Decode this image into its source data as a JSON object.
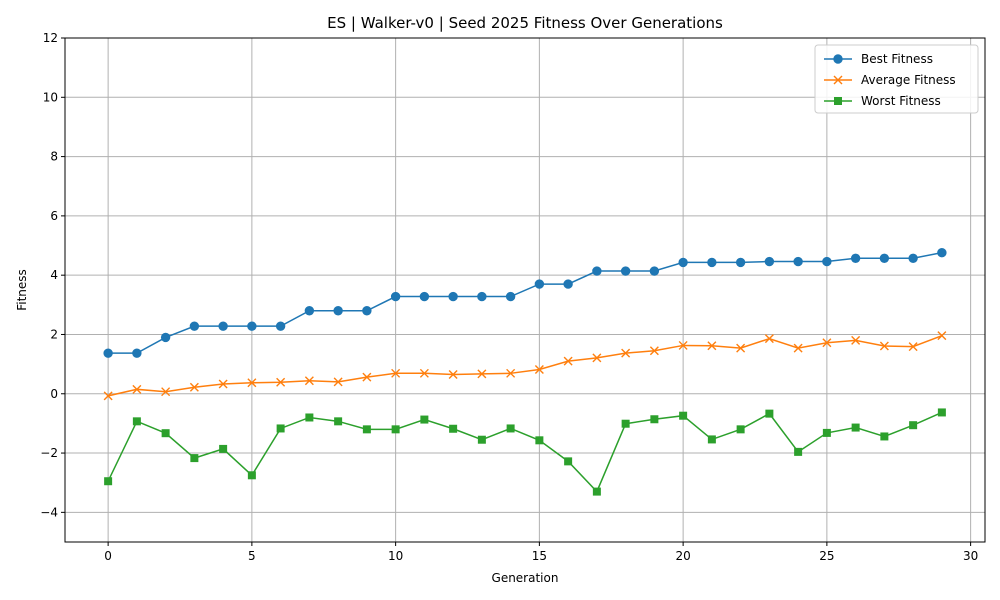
{
  "chart_data": {
    "type": "line",
    "title": "ES | Walker-v0 | Seed 2025 Fitness Over Generations",
    "xlabel": "Generation",
    "ylabel": "Fitness",
    "xlim": [
      -1.5,
      30.5
    ],
    "ylim": [
      -5,
      12
    ],
    "xticks": [
      0,
      5,
      10,
      15,
      20,
      25,
      30
    ],
    "yticks": [
      -4,
      -2,
      0,
      2,
      4,
      6,
      8,
      10,
      12
    ],
    "grid": true,
    "legend_position": "top-right",
    "x": [
      0,
      1,
      2,
      3,
      4,
      5,
      6,
      7,
      8,
      9,
      10,
      11,
      12,
      13,
      14,
      15,
      16,
      17,
      18,
      19,
      20,
      21,
      22,
      23,
      24,
      25,
      26,
      27,
      28,
      29
    ],
    "series": [
      {
        "name": "Best Fitness",
        "color": "#1f77b4",
        "marker": "circle",
        "values": [
          1.37,
          1.37,
          1.9,
          2.28,
          2.28,
          2.28,
          2.28,
          2.8,
          2.8,
          2.8,
          3.28,
          3.28,
          3.28,
          3.28,
          3.28,
          3.7,
          3.7,
          4.14,
          4.14,
          4.14,
          4.43,
          4.43,
          4.43,
          4.46,
          4.46,
          4.46,
          4.57,
          4.57,
          4.57,
          4.76
        ]
      },
      {
        "name": "Average Fitness",
        "color": "#ff7f0e",
        "marker": "x",
        "values": [
          -0.07,
          0.15,
          0.07,
          0.22,
          0.33,
          0.37,
          0.39,
          0.44,
          0.4,
          0.56,
          0.69,
          0.69,
          0.65,
          0.67,
          0.69,
          0.82,
          1.1,
          1.21,
          1.37,
          1.45,
          1.63,
          1.62,
          1.54,
          1.86,
          1.54,
          1.72,
          1.8,
          1.61,
          1.59,
          1.96
        ]
      },
      {
        "name": "Worst Fitness",
        "color": "#2ca02c",
        "marker": "square",
        "values": [
          -2.95,
          -0.93,
          -1.33,
          -2.17,
          -1.86,
          -2.75,
          -1.17,
          -0.8,
          -0.93,
          -1.2,
          -1.2,
          -0.87,
          -1.18,
          -1.55,
          -1.17,
          -1.57,
          -2.28,
          -3.3,
          -1.01,
          -0.86,
          -0.74,
          -1.54,
          -1.2,
          -0.67,
          -1.96,
          -1.32,
          -1.14,
          -1.44,
          -1.06,
          -0.63
        ]
      }
    ]
  }
}
